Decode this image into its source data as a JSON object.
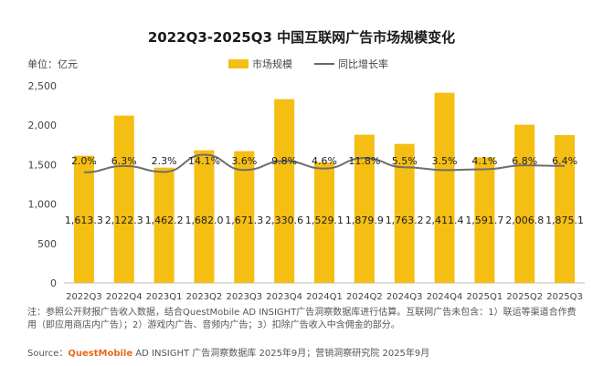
{
  "chart_data": {
    "type": "bar",
    "title": "2022Q3-2025Q3 中国互联网广告市场规模变化",
    "unit_label": "单位：亿元",
    "categories": [
      "2022Q3",
      "2022Q4",
      "2023Q1",
      "2023Q2",
      "2023Q3",
      "2023Q4",
      "2024Q1",
      "2024Q2",
      "2024Q3",
      "2024Q4",
      "2025Q1",
      "2025Q2",
      "2025Q3"
    ],
    "series": [
      {
        "name": "市场规模",
        "type": "bar",
        "color": "#F5BE12",
        "values": [
          1613.3,
          2122.3,
          1462.2,
          1682.0,
          1671.3,
          2330.6,
          1529.1,
          1879.9,
          1763.2,
          2411.4,
          1591.7,
          2006.8,
          1875.1
        ],
        "value_labels": [
          "1,613.3",
          "2,122.3",
          "1,462.2",
          "1,682.0",
          "1,671.3",
          "2,330.6",
          "1,529.1",
          "1,879.9",
          "1,763.2",
          "2,411.4",
          "1,591.7",
          "2,006.8",
          "1,875.1"
        ]
      },
      {
        "name": "同比增长率",
        "type": "line",
        "color": "#6E6E6E",
        "values": [
          2.0,
          6.3,
          2.3,
          14.1,
          3.6,
          9.8,
          4.6,
          11.8,
          5.5,
          3.5,
          4.1,
          6.8,
          6.4
        ],
        "value_labels": [
          "2.0%",
          "6.3%",
          "2.3%",
          "14.1%",
          "3.6%",
          "9.8%",
          "4.6%",
          "11.8%",
          "5.5%",
          "3.5%",
          "4.1%",
          "6.8%",
          "6.4%"
        ]
      }
    ],
    "ylim": [
      0,
      2500
    ],
    "yticks": [
      0,
      500,
      1000,
      1500,
      2000,
      2500
    ],
    "ytick_labels": [
      "0",
      "500",
      "1,000",
      "1,500",
      "2,000",
      "2,500"
    ],
    "grid": false,
    "legend_position": "top"
  },
  "note": "注：参照公开财报广告收入数据，结合QuestMobile AD INSIGHT广告洞察数据库进行估算。互联网广告未包含：1）联运等渠道合作费用（即应用商店内广告）；2）游戏内广告、音频内广告；3）扣除广告收入中含佣金的部分。",
  "source": {
    "prefix": "Source：",
    "brand": "QuestMobile",
    "rest": " AD INSIGHT 广告洞察数据库 2025年9月；营销洞察研究院 2025年9月"
  }
}
